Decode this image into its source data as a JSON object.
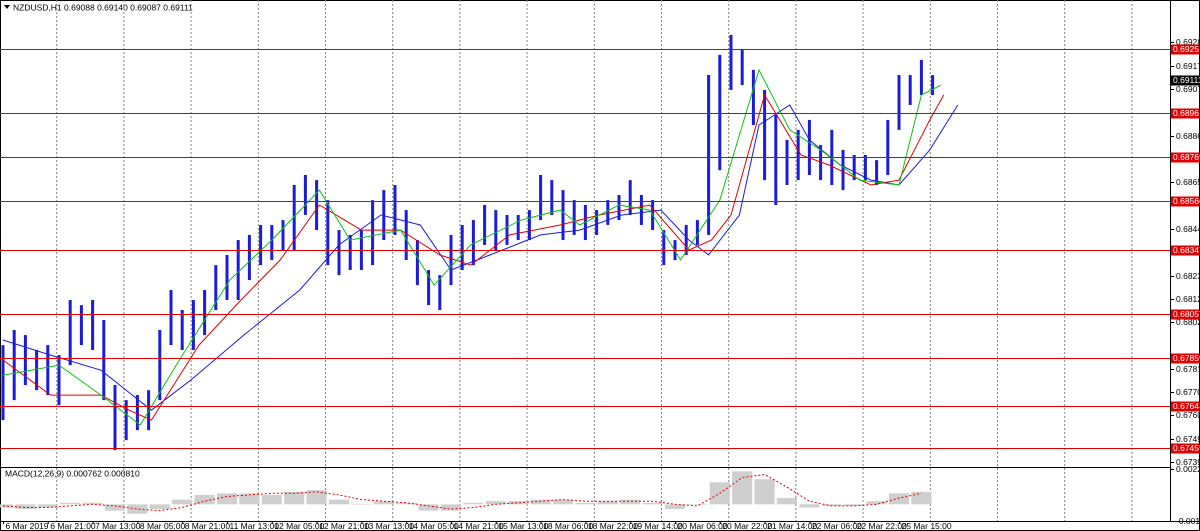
{
  "chart_data": [
    {
      "type": "ohlc",
      "title": "NZDUSD,H1  0.69088 0.69140 0.69087 0.69111",
      "color": "#1c1cd8",
      "xlim": [
        0,
        416
      ],
      "xticks": [
        {
          "value": 0,
          "label": "6 Mar 2019"
        },
        {
          "value": 16,
          "label": "6 Mar 21:00"
        },
        {
          "value": 32,
          "label": "7 Mar 13:00"
        },
        {
          "value": 48,
          "label": "8 Mar 05:00"
        },
        {
          "value": 64,
          "label": "8 Mar 21:00"
        },
        {
          "value": 80,
          "label": "11 Mar 13:00"
        },
        {
          "value": 96,
          "label": "12 Mar 05:00"
        },
        {
          "value": 112,
          "label": "12 Mar 21:00"
        },
        {
          "value": 128,
          "label": "13 Mar 13:00"
        },
        {
          "value": 144,
          "label": "14 Mar 05:00"
        },
        {
          "value": 160,
          "label": "14 Mar 21:00"
        },
        {
          "value": 176,
          "label": "15 Mar 13:00"
        },
        {
          "value": 192,
          "label": "18 Mar 06:00"
        },
        {
          "value": 208,
          "label": "18 Mar 22:00"
        },
        {
          "value": 224,
          "label": "19 Mar 14:00"
        },
        {
          "value": 240,
          "label": "20 Mar 06:00"
        },
        {
          "value": 256,
          "label": "20 Mar 22:00"
        },
        {
          "value": 272,
          "label": "21 Mar 14:00"
        },
        {
          "value": 288,
          "label": "22 Mar 06:00"
        },
        {
          "value": 304,
          "label": "22 Mar 22:00"
        },
        {
          "value": 320,
          "label": "25 Mar 15:00"
        }
      ],
      "xgrid": [
        19,
        43,
        67,
        91,
        115,
        139,
        163,
        187,
        211,
        235,
        259,
        283,
        307,
        331,
        355,
        379,
        403
      ],
      "ylim": [
        0.67368,
        0.69471
      ],
      "yticks": [
        {
          "value": 0.6928,
          "label": "0.69280"
        },
        0.69175,
        {
          "value": 0.6907,
          "label": "0.69070"
        },
        {
          "value": 0.6886,
          "label": "0.68860"
        },
        {
          "value": 0.6865,
          "label": "0.68650"
        },
        {
          "value": 0.6844,
          "label": "0.68440"
        },
        {
          "value": 0.6823,
          "label": "0.68230"
        },
        0.68125,
        {
          "value": 0.6802,
          "label": "0.68020"
        },
        {
          "value": 0.6781,
          "label": "0.67810"
        },
        0.67705,
        {
          "value": 0.676,
          "label": "0.67600"
        },
        0.67495,
        {
          "value": 0.6739,
          "label": "0.67390"
        }
      ],
      "levels": [
        0.69251,
        0.68961,
        0.68765,
        0.68566,
        0.68347,
        0.68057,
        0.67859,
        0.67643,
        0.67455
      ],
      "level_color": "#e00000",
      "last": 0.69111,
      "x": [
        0,
        4,
        8,
        12,
        16,
        20,
        24,
        28,
        32,
        36,
        40,
        44,
        48,
        52,
        56,
        60,
        64,
        68,
        72,
        76,
        80,
        84,
        88,
        92,
        96,
        100,
        104,
        108,
        112,
        116,
        120,
        124,
        128,
        132,
        136,
        140,
        144,
        148,
        152,
        156,
        160,
        164,
        168,
        172,
        176,
        180,
        184,
        188,
        192,
        196,
        200,
        204,
        208,
        212,
        216,
        220,
        224,
        228,
        232,
        236,
        240,
        244,
        248,
        252,
        256,
        260,
        264,
        268,
        272,
        276,
        280,
        284,
        288,
        292,
        296,
        300,
        304,
        308,
        312,
        316,
        320,
        324,
        328,
        332
      ],
      "high": [
        0.67917,
        0.67985,
        0.67962,
        0.67895,
        0.67917,
        0.67872,
        0.6812,
        0.68097,
        0.6812,
        0.6803,
        0.67737,
        0.67669,
        0.67692,
        0.67714,
        0.67985,
        0.68165,
        0.68075,
        0.6812,
        0.68165,
        0.68277,
        0.68323,
        0.6839,
        0.68413,
        0.68458,
        0.68458,
        0.6848,
        0.68638,
        0.68683,
        0.6866,
        0.6857,
        0.68435,
        0.68413,
        0.68435,
        0.6857,
        0.68615,
        0.68638,
        0.68525,
        0.6839,
        0.68255,
        0.68232,
        0.68413,
        0.68458,
        0.6848,
        0.68548,
        0.68525,
        0.68503,
        0.68503,
        0.68525,
        0.68683,
        0.6866,
        0.68615,
        0.6857,
        0.68548,
        0.68525,
        0.6857,
        0.68593,
        0.6866,
        0.68593,
        0.6857,
        0.68435,
        0.6839,
        0.68458,
        0.6848,
        0.69133,
        0.69224,
        0.69314,
        0.69246,
        0.69156,
        0.69066,
        0.68953,
        0.68841,
        0.68886,
        0.68931,
        0.68818,
        0.68886,
        0.68796,
        0.68773,
        0.68773,
        0.6875,
        0.68931,
        0.69133,
        0.69133,
        0.69201,
        0.69133
      ],
      "low": [
        0.67579,
        0.67669,
        0.67737,
        0.67714,
        0.67692,
        0.67647,
        0.67827,
        0.67917,
        0.67895,
        0.67669,
        0.67444,
        0.67489,
        0.67534,
        0.67534,
        0.67669,
        0.67917,
        0.67895,
        0.67895,
        0.67962,
        0.68075,
        0.6812,
        0.6812,
        0.6821,
        0.68277,
        0.683,
        0.68345,
        0.68345,
        0.68503,
        0.68435,
        0.68277,
        0.68232,
        0.68255,
        0.68255,
        0.68277,
        0.6839,
        0.68413,
        0.683,
        0.68187,
        0.68097,
        0.68075,
        0.68187,
        0.68255,
        0.68277,
        0.68368,
        0.68345,
        0.68368,
        0.6839,
        0.6839,
        0.6848,
        0.68503,
        0.6839,
        0.68413,
        0.6839,
        0.68413,
        0.68458,
        0.6848,
        0.68503,
        0.68458,
        0.68435,
        0.68277,
        0.683,
        0.68323,
        0.68368,
        0.68413,
        0.68705,
        0.69066,
        0.69088,
        0.68908,
        0.6866,
        0.68548,
        0.68638,
        0.6866,
        0.68683,
        0.6866,
        0.68638,
        0.68615,
        0.6866,
        0.6866,
        0.68638,
        0.68683,
        0.68886,
        0.68998,
        0.69043,
        0.69043
      ],
      "overlays": [
        {
          "color": "#1c1cd8",
          "x": [
            0,
            17,
            35,
            53,
            67,
            86,
            106,
            120,
            135,
            149,
            160,
            174,
            192,
            206,
            221,
            235,
            245,
            252,
            263,
            270,
            281,
            288,
            299,
            310,
            320,
            331,
            341
          ],
          "values": [
            0.6794,
            0.67872,
            0.67804,
            0.67624,
            0.67759,
            0.67962,
            0.68165,
            0.68368,
            0.68503,
            0.68458,
            0.68255,
            0.68323,
            0.68413,
            0.68435,
            0.68503,
            0.68525,
            0.6839,
            0.68323,
            0.68503,
            0.68908,
            0.68998,
            0.68841,
            0.68728,
            0.6866,
            0.68638,
            0.68796,
            0.68998
          ]
        },
        {
          "color": "#e00000",
          "x": [
            0,
            17,
            35,
            45,
            53,
            70,
            85,
            99,
            113,
            128,
            142,
            156,
            167,
            181,
            199,
            213,
            231,
            245,
            253,
            260,
            272,
            285,
            295,
            310,
            320,
            331,
            336
          ],
          "values": [
            0.6785,
            0.67692,
            0.67692,
            0.67624,
            0.67579,
            0.67917,
            0.6812,
            0.683,
            0.68548,
            0.68435,
            0.68435,
            0.68323,
            0.68277,
            0.68413,
            0.68458,
            0.68503,
            0.68548,
            0.68345,
            0.6839,
            0.68503,
            0.69043,
            0.68773,
            0.68728,
            0.68638,
            0.6866,
            0.68931,
            0.69043
          ]
        },
        {
          "color": "#10c010",
          "x": [
            0,
            10,
            20,
            35,
            49,
            63,
            81,
            96,
            113,
            124,
            142,
            154,
            167,
            185,
            199,
            206,
            220,
            231,
            242,
            256,
            270,
            281,
            292,
            306,
            320,
            328,
            335
          ],
          "values": [
            0.67782,
            0.67804,
            0.67827,
            0.67692,
            0.67557,
            0.6785,
            0.6821,
            0.6839,
            0.68615,
            0.6839,
            0.68435,
            0.68187,
            0.68368,
            0.6848,
            0.68525,
            0.68458,
            0.68548,
            0.68525,
            0.683,
            0.6857,
            0.69156,
            0.68886,
            0.68796,
            0.6866,
            0.68638,
            0.69043,
            0.69088
          ]
        }
      ]
    },
    {
      "type": "macd",
      "title": "MACD(12,26,9) 0.000762 0.000810",
      "ylim": [
        -0.00106,
        0.002249
      ],
      "yticks": [
        0.002249,
        -0.00106
      ],
      "hist_color": "#cfcfcf",
      "signal_color": "#e00000",
      "x": [
        0,
        8,
        16,
        24,
        32,
        40,
        48,
        56,
        64,
        72,
        80,
        88,
        96,
        104,
        112,
        120,
        128,
        136,
        144,
        152,
        160,
        168,
        176,
        184,
        192,
        200,
        208,
        216,
        224,
        232,
        240,
        248,
        256,
        264,
        272,
        280,
        288,
        296,
        304,
        312,
        320,
        328
      ],
      "histogram": [
        -0.0002,
        -0.0003,
        -0.0002,
        0.0001,
        0.0001,
        -0.0004,
        -0.0006,
        -0.0003,
        0.0003,
        0.0006,
        0.0007,
        0.0007,
        0.0006,
        0.0008,
        0.0009,
        0.0003,
        0,
        0.0002,
        0.0001,
        -0.0004,
        -0.0004,
        0.0001,
        0.0002,
        0.0002,
        0.0003,
        0.0003,
        0.0001,
        0.0002,
        0.0003,
        0.0001,
        -0.0003,
        0,
        0.0014,
        0.0021,
        0.0016,
        0.0004,
        -0.0002,
        -0.0001,
        -0.0001,
        0.0002,
        0.0007,
        0.0008
      ],
      "signal": [
        -0.0001,
        -0.0002,
        -0.0002,
        -0.0001,
        0,
        -0.0001,
        -0.0003,
        -0.0004,
        -0.0002,
        0.0002,
        0.0005,
        0.0006,
        0.0007,
        0.0007,
        0.0008,
        0.0006,
        0.0003,
        0.0002,
        0.0001,
        -0.0001,
        -0.0003,
        -0.0002,
        0,
        0.0001,
        0.0002,
        0.0003,
        0.0002,
        0.0002,
        0.0002,
        0.0002,
        0,
        -0.0001,
        0.0007,
        0.0017,
        0.0019,
        0.0011,
        0.0002,
        -0.0001,
        -0.0001,
        0,
        0.0004,
        0.0007
      ]
    }
  ]
}
